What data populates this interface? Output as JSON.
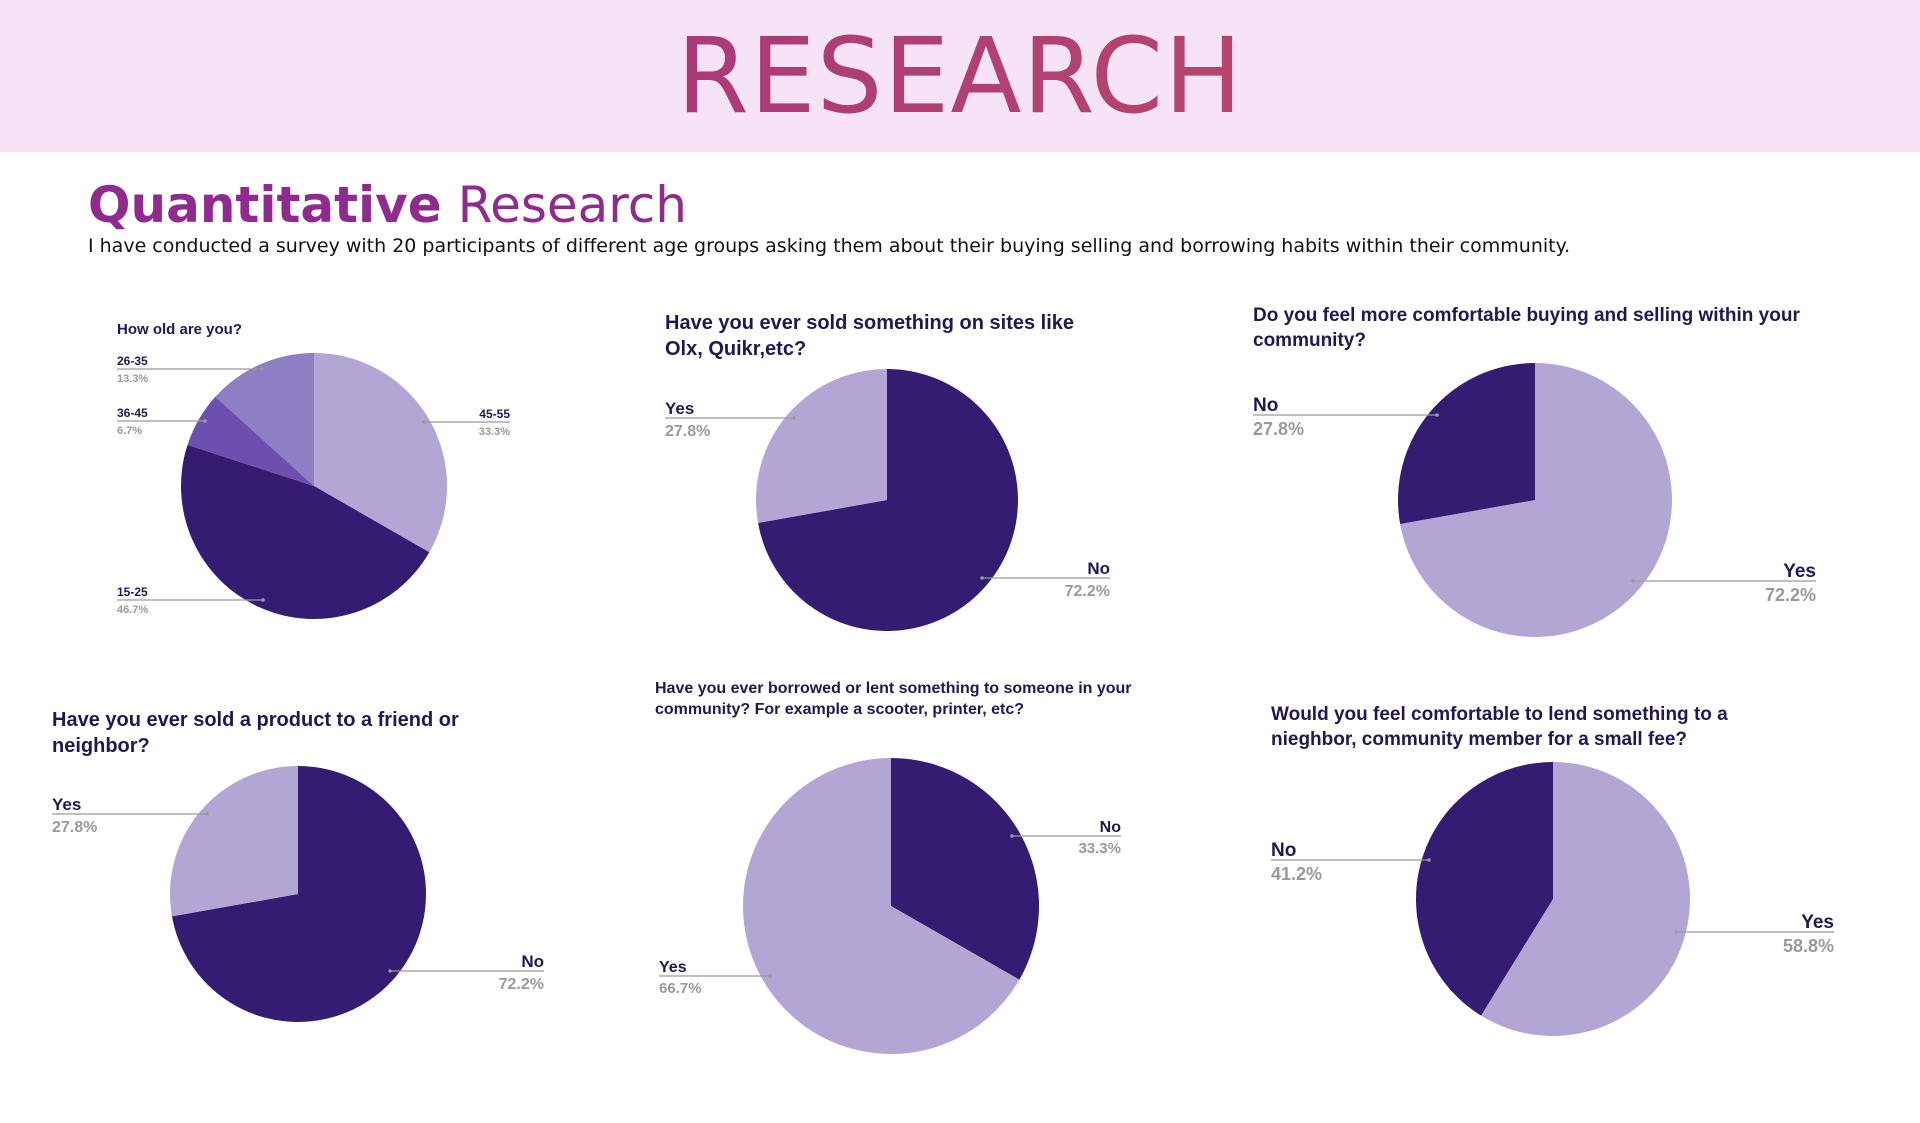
{
  "header": {
    "title": "RESEARCH"
  },
  "section": {
    "title_bold": "Quantitative",
    "title_light": "Research",
    "intro": "I have conducted a survey with 20 participants of different age groups asking them about their buying selling and borrowing habits within their community."
  },
  "colors": {
    "dark": "#341c72",
    "light": "#b3a6d5",
    "mid1": "#8e7fc3",
    "mid2": "#6c4fae",
    "label_dark": "#231653",
    "label_gray": "#999999",
    "leader": "#9a9a9a"
  },
  "chart_data": [
    {
      "type": "pie",
      "title": "How old are you?",
      "slices": [
        {
          "label": "45-55",
          "value": 33.3,
          "pct": "33.3%"
        },
        {
          "label": "15-25",
          "value": 46.7,
          "pct": "46.7%"
        },
        {
          "label": "36-45",
          "value": 6.7,
          "pct": "6.7%"
        },
        {
          "label": "26-35",
          "value": 13.3,
          "pct": "13.3%"
        }
      ]
    },
    {
      "type": "pie",
      "title": "Have you ever sold something on sites like Olx, Quikr,etc?",
      "slices": [
        {
          "label": "No",
          "value": 72.2,
          "pct": "72.2%"
        },
        {
          "label": "Yes",
          "value": 27.8,
          "pct": "27.8%"
        }
      ]
    },
    {
      "type": "pie",
      "title": "Do you feel more comfortable buying and selling within your community?",
      "slices": [
        {
          "label": "Yes",
          "value": 72.2,
          "pct": "72.2%"
        },
        {
          "label": "No",
          "value": 27.8,
          "pct": "27.8%"
        }
      ]
    },
    {
      "type": "pie",
      "title": "Have you ever sold a product to a friend or neighbor?",
      "slices": [
        {
          "label": "No",
          "value": 72.2,
          "pct": "72.2%"
        },
        {
          "label": "Yes",
          "value": 27.8,
          "pct": "27.8%"
        }
      ]
    },
    {
      "type": "pie",
      "title": "Have you ever borrowed or lent something to someone in your community? For example a scooter, printer, etc?",
      "slices": [
        {
          "label": "No",
          "value": 33.3,
          "pct": "33.3%"
        },
        {
          "label": "Yes",
          "value": 66.7,
          "pct": "66.7%"
        }
      ]
    },
    {
      "type": "pie",
      "title": "Would you feel comfortable to lend something to a nieghbor, community member for a small fee?",
      "slices": [
        {
          "label": "Yes",
          "value": 58.8,
          "pct": "58.8%"
        },
        {
          "label": "No",
          "value": 41.2,
          "pct": "41.2%"
        }
      ]
    }
  ]
}
